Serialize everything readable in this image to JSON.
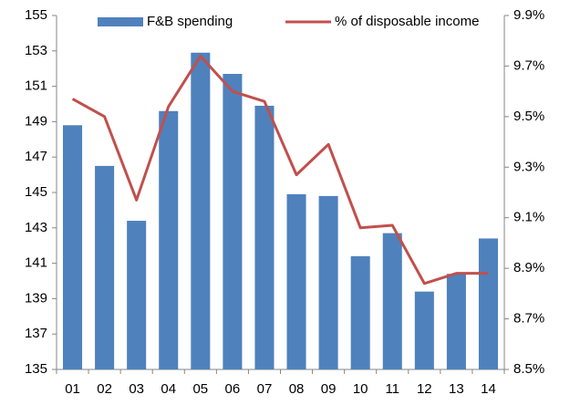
{
  "chart_data": {
    "type": "bar-line",
    "categories": [
      "01",
      "02",
      "03",
      "04",
      "05",
      "06",
      "07",
      "08",
      "09",
      "10",
      "11",
      "12",
      "13",
      "14"
    ],
    "series": [
      {
        "name": "F&B spending",
        "type": "bar",
        "color": "#4f81bd",
        "axis": "y",
        "values": [
          148.8,
          146.5,
          143.4,
          149.6,
          152.9,
          151.7,
          149.9,
          144.9,
          144.8,
          141.4,
          142.7,
          139.4,
          140.4,
          142.4
        ]
      },
      {
        "name": "% of disposable income",
        "type": "line",
        "color": "#c0504d",
        "axis": "y2",
        "values": [
          9.57,
          9.5,
          9.17,
          9.54,
          9.74,
          9.6,
          9.56,
          9.27,
          9.39,
          9.06,
          9.07,
          8.84,
          8.88,
          8.88
        ]
      }
    ],
    "ylim": [
      135,
      155
    ],
    "yticks": [
      135,
      137,
      139,
      141,
      143,
      145,
      147,
      149,
      151,
      153,
      155
    ],
    "y2lim": [
      8.5,
      9.9
    ],
    "y2ticks": [
      {
        "value": 8.5,
        "label": "8.5%"
      },
      {
        "value": 8.7,
        "label": "8.7%"
      },
      {
        "value": 8.9,
        "label": "8.9%"
      },
      {
        "value": 9.1,
        "label": "9.1%"
      },
      {
        "value": 9.3,
        "label": "9.3%"
      },
      {
        "value": 9.5,
        "label": "9.5%"
      },
      {
        "value": 9.7,
        "label": "9.7%"
      },
      {
        "value": 9.9,
        "label": "9.9%"
      }
    ],
    "legend": "top",
    "grid": false
  }
}
